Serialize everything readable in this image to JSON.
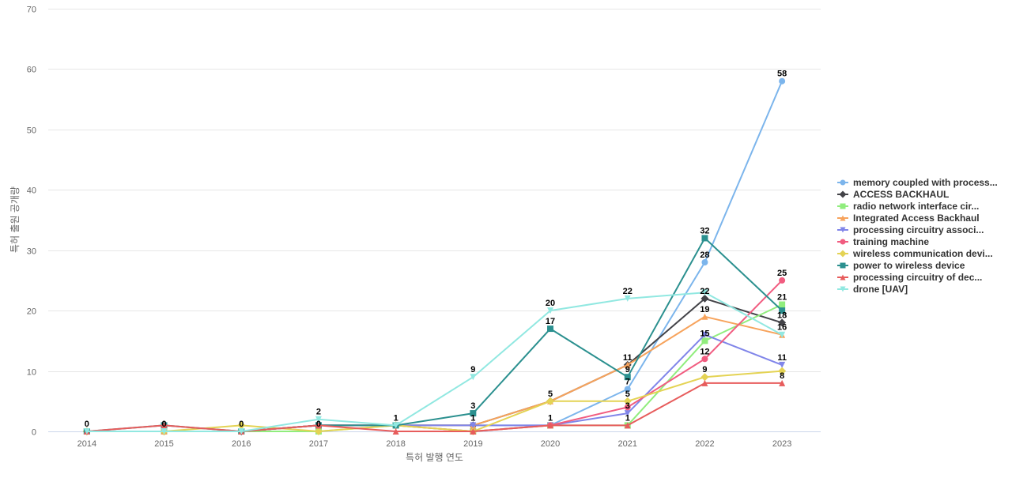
{
  "chart_data": {
    "type": "line",
    "title": "",
    "xlabel": "특허 발행 연도",
    "ylabel": "특허 출원 공개량",
    "ylim": [
      0,
      70
    ],
    "yticks": [
      0,
      10,
      20,
      30,
      40,
      50,
      60,
      70
    ],
    "grid": true,
    "legend_position": "right",
    "categories": [
      "2014",
      "2015",
      "2016",
      "2017",
      "2018",
      "2019",
      "2020",
      "2021",
      "2022",
      "2023"
    ],
    "series": [
      {
        "name": "memory coupled with process...",
        "color": "#7cb5ec",
        "marker": "circle",
        "values": [
          0,
          0,
          0,
          1,
          1,
          1,
          1,
          7,
          28,
          58
        ]
      },
      {
        "name": "ACCESS BACKHAUL",
        "color": "#434348",
        "marker": "diamond",
        "values": [
          0,
          0,
          0,
          1,
          1,
          1,
          5,
          11,
          22,
          18
        ]
      },
      {
        "name": "radio network interface cir...",
        "color": "#90ed7d",
        "marker": "square",
        "values": [
          0,
          0,
          0,
          0,
          1,
          0,
          1,
          1,
          15,
          21
        ]
      },
      {
        "name": "Integrated Access Backhaul",
        "color": "#f7a35c",
        "marker": "triangle",
        "values": [
          0,
          0,
          0,
          1,
          1,
          1,
          5,
          11,
          19,
          16
        ]
      },
      {
        "name": "processing circuitry associ...",
        "color": "#8085e9",
        "marker": "triangle-down",
        "values": [
          0,
          0,
          0,
          1,
          1,
          1,
          1,
          3,
          16,
          11
        ]
      },
      {
        "name": "training machine",
        "color": "#f15c80",
        "marker": "circle",
        "values": [
          0,
          0,
          0,
          1,
          1,
          0,
          1,
          4,
          12,
          25
        ]
      },
      {
        "name": "wireless communication devi...",
        "color": "#e4d354",
        "marker": "diamond",
        "values": [
          0,
          0,
          1,
          0,
          1,
          0,
          5,
          5,
          9,
          10
        ]
      },
      {
        "name": "power to wireless device",
        "color": "#2b908f",
        "marker": "square",
        "values": [
          0,
          1,
          0,
          1,
          1,
          3,
          17,
          9,
          32,
          20
        ]
      },
      {
        "name": "processing circuitry of dec...",
        "color": "#e75c5c",
        "marker": "triangle",
        "values": [
          0,
          1,
          0,
          1,
          0,
          0,
          1,
          1,
          8,
          8
        ]
      },
      {
        "name": "drone [UAV]",
        "color": "#91e8e1",
        "marker": "triangle-down",
        "values": [
          0,
          0,
          0,
          2,
          1,
          9,
          20,
          22,
          23,
          16
        ]
      }
    ],
    "data_labels": [
      {
        "category": "2014",
        "value": 0,
        "text": "0"
      },
      {
        "category": "2015",
        "value": 0,
        "text": "0"
      },
      {
        "category": "2016",
        "value": 0,
        "text": "0"
      },
      {
        "category": "2017",
        "value": 2,
        "text": "2"
      },
      {
        "category": "2017",
        "value": 0,
        "text": "0"
      },
      {
        "category": "2018",
        "value": 1,
        "text": "1"
      },
      {
        "category": "2019",
        "value": 9,
        "text": "9"
      },
      {
        "category": "2019",
        "value": 3,
        "text": "3"
      },
      {
        "category": "2019",
        "value": 1,
        "text": "1"
      },
      {
        "category": "2020",
        "value": 20,
        "text": "20"
      },
      {
        "category": "2020",
        "value": 17,
        "text": "17"
      },
      {
        "category": "2020",
        "value": 5,
        "text": "5"
      },
      {
        "category": "2020",
        "value": 1,
        "text": "1"
      },
      {
        "category": "2021",
        "value": 22,
        "text": "22"
      },
      {
        "category": "2021",
        "value": 11,
        "text": "11"
      },
      {
        "category": "2021",
        "value": 9,
        "text": "9"
      },
      {
        "category": "2021",
        "value": 7,
        "text": "7"
      },
      {
        "category": "2021",
        "value": 5,
        "text": "5"
      },
      {
        "category": "2021",
        "value": 3,
        "text": "3"
      },
      {
        "category": "2021",
        "value": 1,
        "text": "1"
      },
      {
        "category": "2022",
        "value": 32,
        "text": "32"
      },
      {
        "category": "2022",
        "value": 28,
        "text": "28"
      },
      {
        "category": "2022",
        "value": 22,
        "text": "22"
      },
      {
        "category": "2022",
        "value": 19,
        "text": "19"
      },
      {
        "category": "2022",
        "value": 15,
        "text": "15"
      },
      {
        "category": "2022",
        "value": 12,
        "text": "12"
      },
      {
        "category": "2022",
        "value": 9,
        "text": "9"
      },
      {
        "category": "2023",
        "value": 58,
        "text": "58"
      },
      {
        "category": "2023",
        "value": 25,
        "text": "25"
      },
      {
        "category": "2023",
        "value": 21,
        "text": "21"
      },
      {
        "category": "2023",
        "value": 18,
        "text": "18"
      },
      {
        "category": "2023",
        "value": 16,
        "text": "16"
      },
      {
        "category": "2023",
        "value": 11,
        "text": "11"
      },
      {
        "category": "2023",
        "value": 8,
        "text": "8"
      }
    ]
  }
}
